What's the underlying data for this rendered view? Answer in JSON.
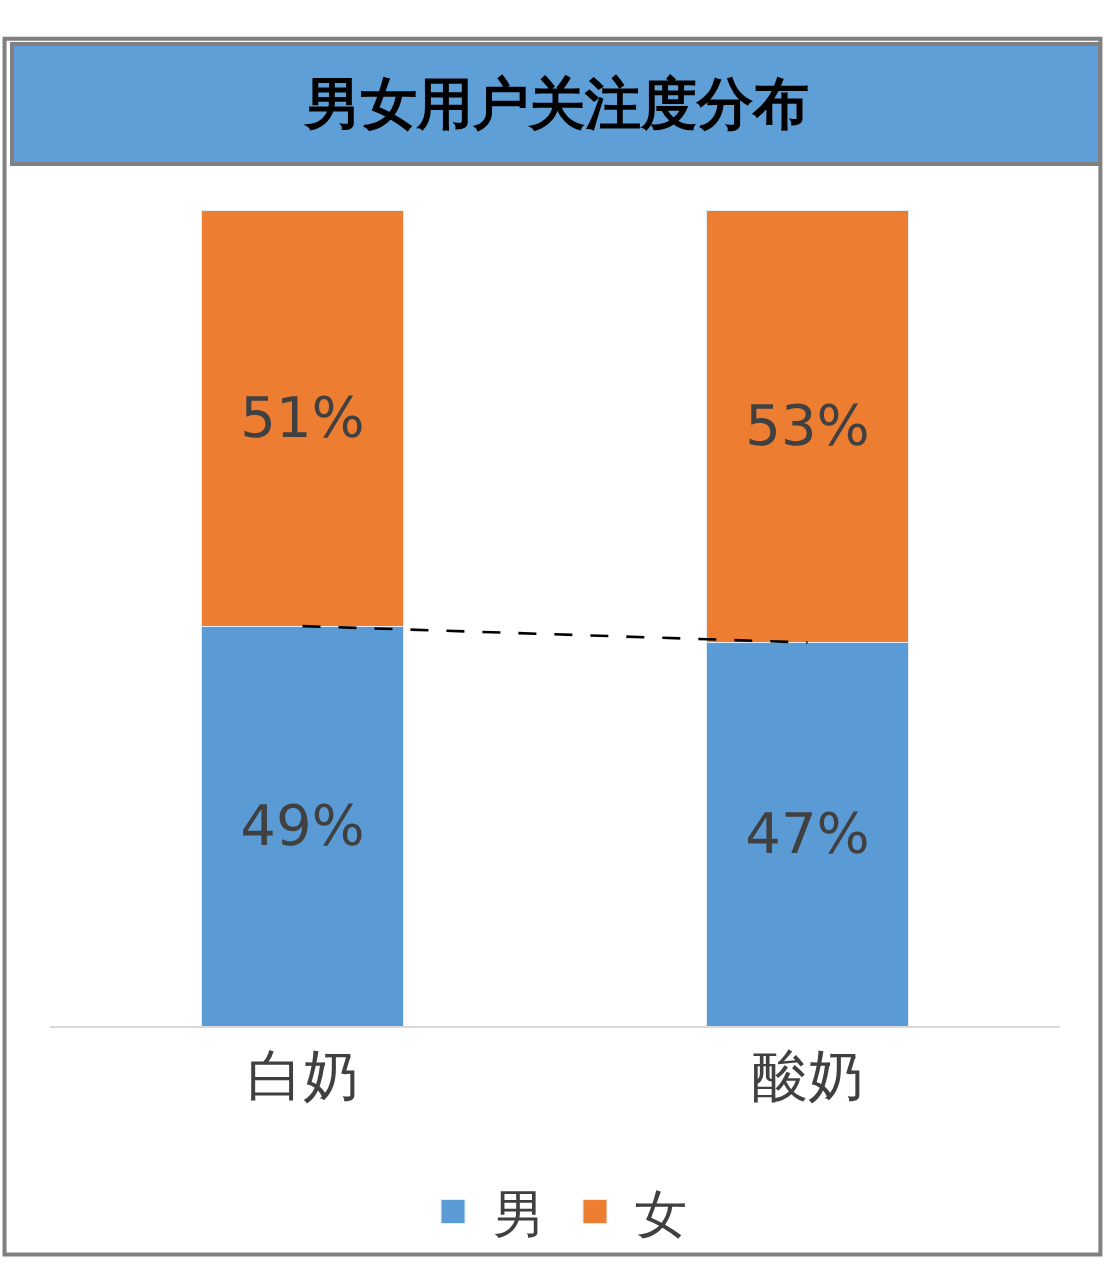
{
  "chart_data": {
    "type": "bar",
    "title": "男女用户关注度分布",
    "categories": [
      "白奶",
      "酸奶"
    ],
    "stacked": true,
    "legend": "bottom",
    "series": [
      {
        "name": "男",
        "color": "#5b9bd5",
        "values": [
          49,
          47
        ],
        "value_labels": [
          "49%",
          "47%"
        ]
      },
      {
        "name": "女",
        "color": "#ed7d31",
        "values": [
          51,
          53
        ],
        "value_labels": [
          "51%",
          "53%"
        ]
      },
      {
        "type": "line",
        "color": "#000000",
        "values": [
          49,
          47
        ],
        "line_style": "dashed",
        "marker": "none"
      }
    ]
  }
}
